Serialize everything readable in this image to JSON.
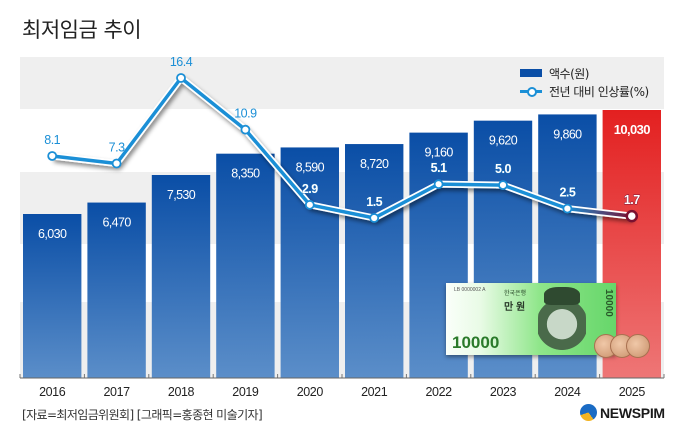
{
  "title": "최저임금 추이",
  "legend": {
    "bar_label": "액수(원)",
    "line_label": "전년 대비 인상률(%)"
  },
  "colors": {
    "bar": "#0a4ea6",
    "bar_highlight": "#e32d2d",
    "line": "#1b8fd6",
    "line_highlight": "#7a1030",
    "band": "#efefef"
  },
  "source": "[자료=최저임금위원회] [그래픽=홍종현 미술기자]",
  "logo": "NEWSPIM",
  "banknote": {
    "denomination": "10000",
    "label": "만 원",
    "bank": "한국은행",
    "serial": "LB 0000002 A"
  },
  "chart_data": {
    "type": "bar",
    "title": "최저임금 추이",
    "xlabel": "",
    "ylabel": "",
    "categories": [
      "2016",
      "2017",
      "2018",
      "2019",
      "2020",
      "2021",
      "2022",
      "2023",
      "2024",
      "2025"
    ],
    "series": [
      {
        "name": "액수(원)",
        "type": "bar",
        "values": [
          6030,
          6470,
          7530,
          8350,
          8590,
          8720,
          9160,
          9620,
          9860,
          10030
        ],
        "labels": [
          "6,030",
          "6,470",
          "7,530",
          "8,350",
          "8,590",
          "8,720",
          "9,160",
          "9,620",
          "9,860",
          "10,030"
        ]
      },
      {
        "name": "전년 대비 인상률(%)",
        "type": "line",
        "values": [
          8.1,
          7.3,
          16.4,
          10.9,
          2.9,
          1.5,
          5.1,
          5.0,
          2.5,
          1.7
        ],
        "labels": [
          "8.1",
          "7.3",
          "16.4",
          "10.9",
          "2.9",
          "1.5",
          "5.1",
          "5.0",
          "2.5",
          "1.7"
        ]
      }
    ],
    "highlight_category": "2025",
    "legend_position": "top-right",
    "grid": false
  }
}
